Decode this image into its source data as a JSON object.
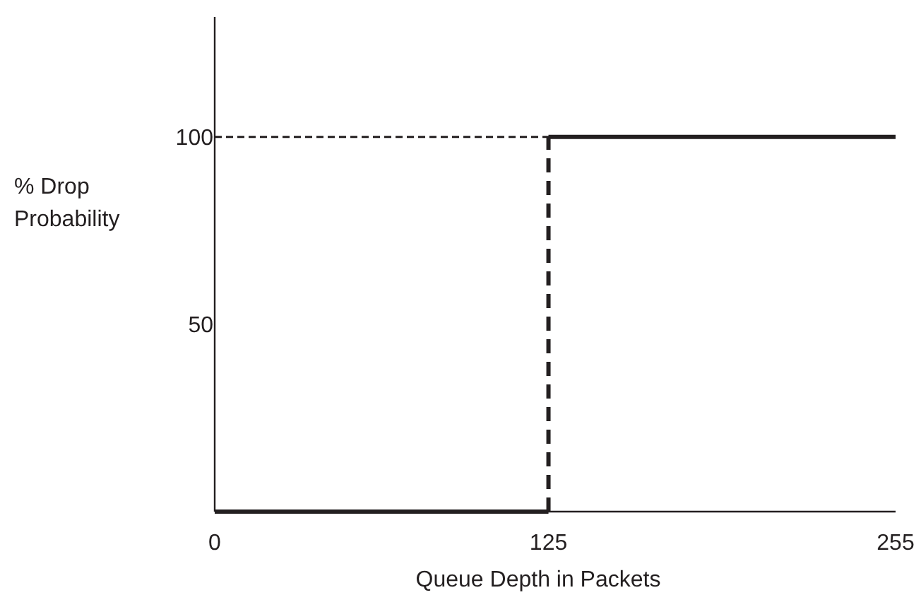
{
  "chart_data": {
    "type": "line",
    "xlabel": "Queue Depth in Packets",
    "ylabel": "% Drop Probability",
    "xlim": [
      0,
      255
    ],
    "ylim": [
      0,
      132
    ],
    "xticks": [
      0,
      125,
      255
    ],
    "yticks": [
      50,
      100
    ],
    "grid": false,
    "series": [
      {
        "color": "#231f20",
        "x": [
          0,
          125
        ],
        "values": [
          0,
          0
        ],
        "line_style": "solid"
      },
      {
        "color": "#231f20",
        "x": [
          125,
          125
        ],
        "values": [
          0,
          100
        ],
        "line_style": "dashed"
      },
      {
        "color": "#231f20",
        "x": [
          125,
          255
        ],
        "values": [
          100,
          100
        ],
        "line_style": "solid"
      }
    ],
    "ref_lines": [
      {
        "axis": "y",
        "value": 100,
        "color": "#231f20",
        "line_style": "dashed"
      }
    ]
  }
}
